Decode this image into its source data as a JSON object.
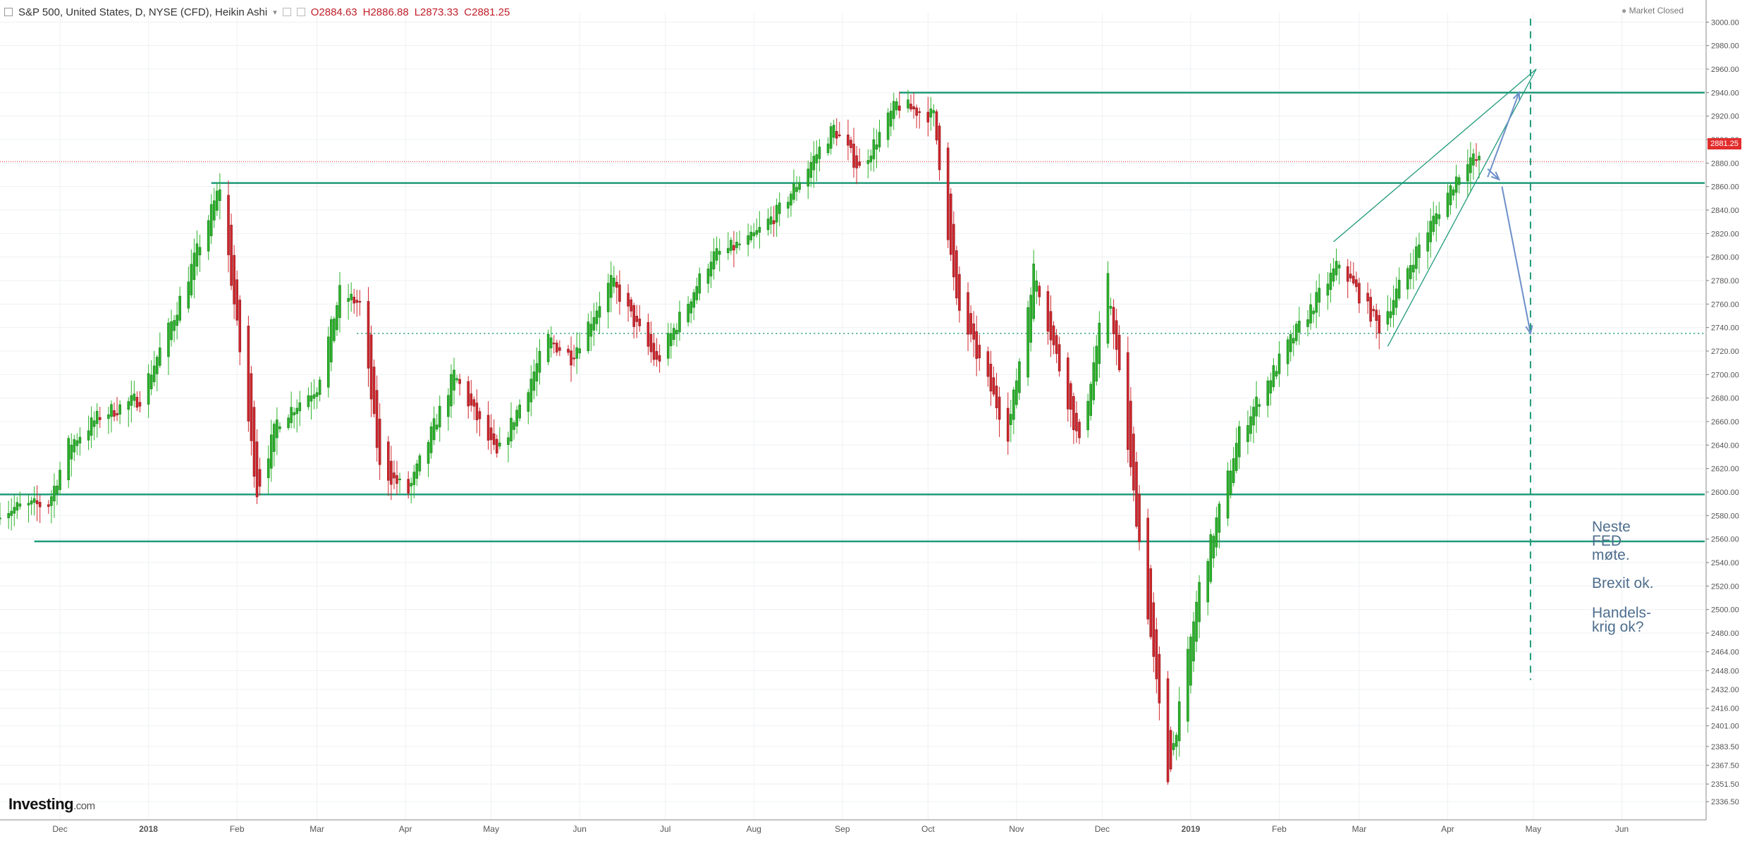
{
  "header": {
    "instrument": "S&P 500, United States, D, NYSE (CFD), Heikin Ashi",
    "open": "O2884.63",
    "high": "H2886.88",
    "low": "L2873.33",
    "close": "C2881.25"
  },
  "status": {
    "market": "Market Closed"
  },
  "brand": {
    "name": "Investing",
    "suffix": ".com"
  },
  "last_price": "2881.25",
  "notes": {
    "fed": "Neste\nFED\nmøte.",
    "brexit": "Brexit ok.",
    "trade": "Handels-\nkrig ok?"
  },
  "colors": {
    "up": "#2bb32b",
    "down": "#d1262d",
    "level": "#1f9a7a",
    "arrow": "#6c8fc8",
    "last": "#e22d2d"
  },
  "chart_data": {
    "type": "candlestick",
    "chart_style": "Heikin Ashi",
    "interval": "D",
    "y_axis": {
      "position": "right",
      "ylim": [
        2321,
        3008
      ],
      "ticks": [
        "3000.00",
        "2980.00",
        "2960.00",
        "2940.00",
        "2920.00",
        "2900.00",
        "2880.00",
        "2860.00",
        "2840.00",
        "2820.00",
        "2800.00",
        "2780.00",
        "2760.00",
        "2740.00",
        "2720.00",
        "2700.00",
        "2680.00",
        "2660.00",
        "2640.00",
        "2620.00",
        "2600.00",
        "2580.00",
        "2560.00",
        "2540.00",
        "2520.00",
        "2500.00",
        "2480.00",
        "2464.00",
        "2448.00",
        "2432.00",
        "2416.00",
        "2401.00",
        "2383.50",
        "2367.50",
        "2351.50",
        "2336.50"
      ]
    },
    "x_axis": {
      "start": "2017-11-10",
      "end": "2019-06-30",
      "ticks": [
        {
          "date": "2017-12-01",
          "label": "Dec"
        },
        {
          "date": "2018-01-01",
          "label": "2018"
        },
        {
          "date": "2018-02-01",
          "label": "Feb"
        },
        {
          "date": "2018-03-01",
          "label": "Mar"
        },
        {
          "date": "2018-04-01",
          "label": "Apr"
        },
        {
          "date": "2018-05-01",
          "label": "May"
        },
        {
          "date": "2018-06-01",
          "label": "Jun"
        },
        {
          "date": "2018-07-01",
          "label": "Jul"
        },
        {
          "date": "2018-08-01",
          "label": "Aug"
        },
        {
          "date": "2018-09-01",
          "label": "Sep"
        },
        {
          "date": "2018-10-01",
          "label": "Oct"
        },
        {
          "date": "2018-11-01",
          "label": "Nov"
        },
        {
          "date": "2018-12-01",
          "label": "Dec"
        },
        {
          "date": "2019-01-01",
          "label": "2019"
        },
        {
          "date": "2019-02-01",
          "label": "Feb"
        },
        {
          "date": "2019-03-01",
          "label": "Mar"
        },
        {
          "date": "2019-04-01",
          "label": "Apr"
        },
        {
          "date": "2019-05-01",
          "label": "May"
        },
        {
          "date": "2019-06-01",
          "label": "Jun"
        }
      ]
    },
    "trend_anchors": [
      [
        "2017-11-10",
        2585
      ],
      [
        "2017-11-27",
        2590
      ],
      [
        "2017-12-04",
        2640
      ],
      [
        "2017-12-15",
        2665
      ],
      [
        "2017-12-29",
        2680
      ],
      [
        "2018-01-10",
        2750
      ],
      [
        "2018-01-26",
        2860
      ],
      [
        "2018-02-08",
        2600
      ],
      [
        "2018-02-15",
        2660
      ],
      [
        "2018-03-01",
        2690
      ],
      [
        "2018-03-09",
        2770
      ],
      [
        "2018-03-16",
        2760
      ],
      [
        "2018-03-23",
        2620
      ],
      [
        "2018-04-02",
        2600
      ],
      [
        "2018-04-18",
        2700
      ],
      [
        "2018-05-03",
        2630
      ],
      [
        "2018-05-21",
        2730
      ],
      [
        "2018-05-29",
        2715
      ],
      [
        "2018-06-12",
        2780
      ],
      [
        "2018-06-28",
        2710
      ],
      [
        "2018-07-17",
        2800
      ],
      [
        "2018-07-31",
        2815
      ],
      [
        "2018-08-10",
        2840
      ],
      [
        "2018-08-29",
        2910
      ],
      [
        "2018-09-07",
        2875
      ],
      [
        "2018-09-20",
        2930
      ],
      [
        "2018-10-03",
        2920
      ],
      [
        "2018-10-11",
        2760
      ],
      [
        "2018-10-29",
        2650
      ],
      [
        "2018-11-07",
        2790
      ],
      [
        "2018-11-23",
        2640
      ],
      [
        "2018-12-03",
        2780
      ],
      [
        "2018-12-24",
        2355
      ],
      [
        "2019-01-04",
        2520
      ],
      [
        "2019-01-18",
        2650
      ],
      [
        "2019-02-04",
        2725
      ],
      [
        "2019-02-22",
        2795
      ],
      [
        "2019-03-08",
        2740
      ],
      [
        "2019-03-22",
        2810
      ],
      [
        "2019-04-08",
        2885
      ],
      [
        "2019-04-12",
        2881
      ]
    ],
    "levels": [
      {
        "price": 2940,
        "from": "2018-09-21",
        "style": "solid"
      },
      {
        "price": 2863,
        "from": "2018-01-23",
        "style": "solid"
      },
      {
        "price": 2598,
        "from": "2017-11-10",
        "style": "solid"
      },
      {
        "price": 2558,
        "from": "2017-11-22",
        "style": "solid"
      },
      {
        "price": 2735,
        "from": "2018-03-15",
        "style": "dotted"
      },
      {
        "price": 2881.25,
        "from": "2017-11-10",
        "style": "last-price"
      }
    ],
    "wedge": {
      "upper": [
        [
          "2019-02-20",
          2813
        ],
        [
          "2019-05-02",
          2960
        ]
      ],
      "lower": [
        [
          "2019-03-11",
          2724
        ],
        [
          "2019-05-02",
          2960
        ]
      ]
    },
    "projection_arrows": [
      [
        [
          "2019-04-15",
          2868
        ],
        [
          "2019-04-26",
          2940
        ]
      ],
      [
        [
          "2019-04-15",
          2875
        ],
        [
          "2019-04-19",
          2866
        ]
      ],
      [
        [
          "2019-04-20",
          2860
        ],
        [
          "2019-04-30",
          2735
        ]
      ]
    ],
    "event_line": {
      "date": "2019-04-30",
      "style": "dashed",
      "price_range": [
        2440,
        3003
      ]
    },
    "last_price": 2881.25
  }
}
